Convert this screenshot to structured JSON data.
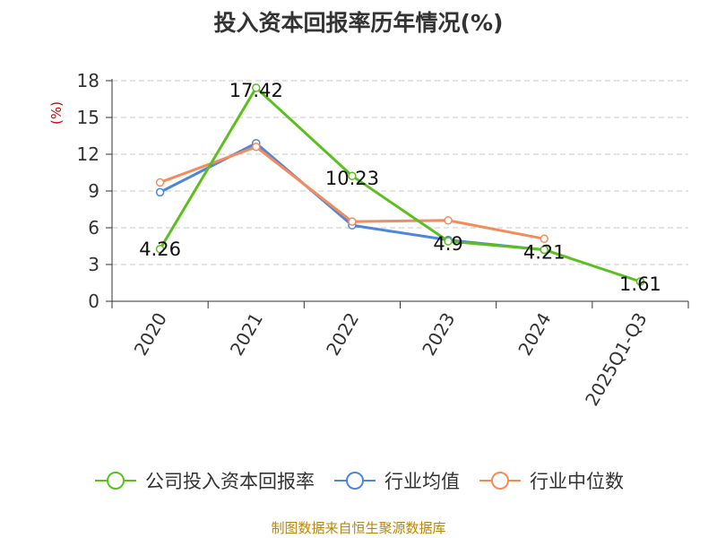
{
  "title": "投入资本回报率历年情况(%)",
  "source_note": "制图数据来自恒生聚源数据库",
  "chart_data": {
    "type": "line",
    "title": "投入资本回报率历年情况(%)",
    "ylabel": "(%)",
    "xlabel": "",
    "categories": [
      "2020",
      "2021",
      "2022",
      "2023",
      "2024",
      "2025Q1-Q3"
    ],
    "ylim": [
      0,
      18
    ],
    "yticks": [
      0,
      3,
      6,
      9,
      12,
      15,
      18
    ],
    "grid": true,
    "legend_position": "bottom",
    "series": [
      {
        "name": "公司投入资本回报率",
        "color": "#5cbf1f",
        "values": [
          4.26,
          17.42,
          10.23,
          4.9,
          4.21,
          1.61
        ],
        "labels": [
          "4.26",
          "17.42",
          "10.23",
          "4.9",
          "4.21",
          "1.61"
        ]
      },
      {
        "name": "行业均值",
        "color": "#4e86db",
        "values": [
          8.9,
          12.9,
          6.2,
          5.0,
          4.2,
          null
        ]
      },
      {
        "name": "行业中位数",
        "color": "#f58b5a",
        "values": [
          9.7,
          12.6,
          6.5,
          6.6,
          5.1,
          null
        ]
      }
    ]
  }
}
